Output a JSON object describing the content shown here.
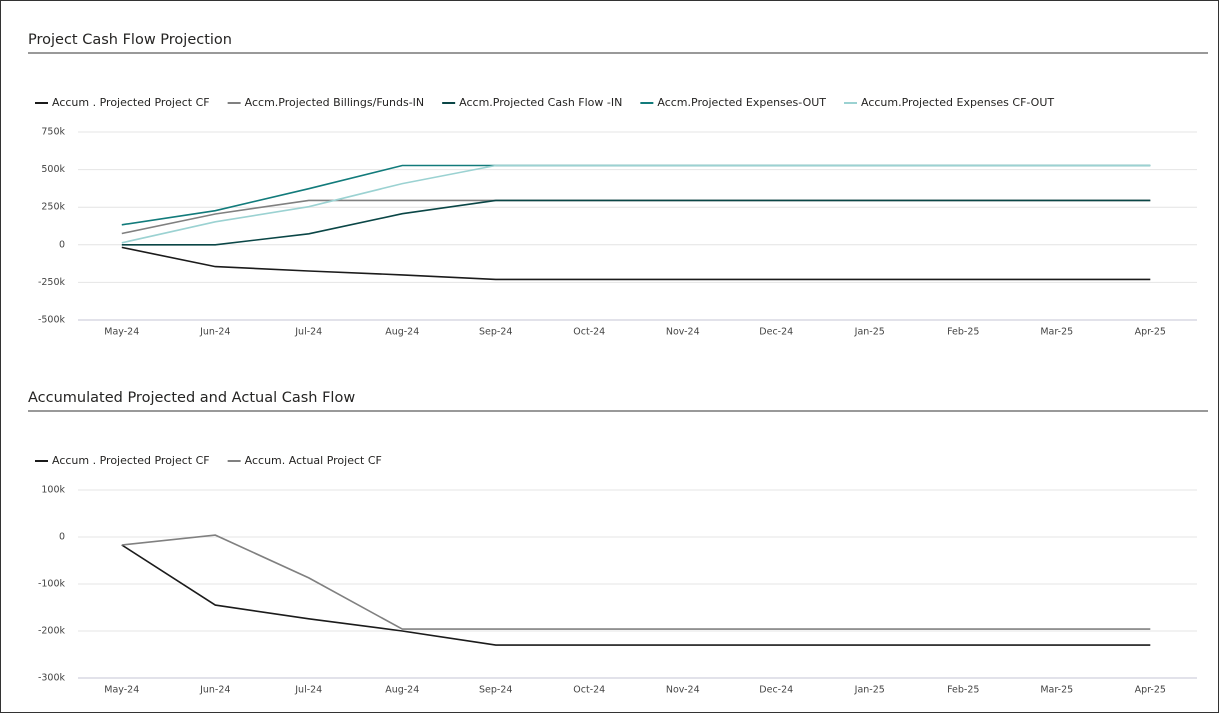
{
  "chart_data": [
    {
      "type": "line",
      "title": "Project Cash Flow Projection",
      "categories": [
        "May-24",
        "Jun-24",
        "Jul-24",
        "Aug-24",
        "Sep-24",
        "Oct-24",
        "Nov-24",
        "Dec-24",
        "Jan-25",
        "Feb-25",
        "Mar-25",
        "Apr-25"
      ],
      "series": [
        {
          "name": "Accum . Projected Project CF",
          "color": "#1b1b1b",
          "values": [
            -17000,
            -145000,
            -174000,
            -200000,
            -230000,
            -230000,
            -230000,
            -230000,
            -230000,
            -230000,
            -230000,
            -230000
          ]
        },
        {
          "name": "Accm.Projected Billings/Funds-IN",
          "color": "#808080",
          "values": [
            75000,
            205000,
            295000,
            295000,
            295000,
            295000,
            295000,
            295000,
            295000,
            295000,
            295000,
            295000
          ]
        },
        {
          "name": "Accm.Projected Cash Flow -IN",
          "color": "#0a4646",
          "values": [
            0,
            0,
            73000,
            207000,
            295000,
            295000,
            295000,
            295000,
            295000,
            295000,
            295000,
            295000
          ]
        },
        {
          "name": "Accm.Projected Expenses-OUT",
          "color": "#127b7b",
          "values": [
            133000,
            227000,
            373000,
            527000,
            527000,
            527000,
            527000,
            527000,
            527000,
            527000,
            527000,
            527000
          ]
        },
        {
          "name": "Accum.Projected Expenses CF-OUT",
          "color": "#9bd2d2",
          "values": [
            13000,
            153000,
            253000,
            407000,
            527000,
            527000,
            527000,
            527000,
            527000,
            527000,
            527000,
            527000
          ]
        }
      ],
      "ylim": [
        -500000,
        750000
      ],
      "yticks": [
        {
          "value": -500000,
          "label": "-500k"
        },
        {
          "value": -250000,
          "label": "-250k"
        },
        0,
        {
          "value": 250000,
          "label": "250k"
        },
        {
          "value": 500000,
          "label": "500k"
        },
        {
          "value": 750000,
          "label": "750k"
        }
      ],
      "grid": true
    },
    {
      "type": "line",
      "title": "Accumulated Projected and Actual Cash Flow",
      "categories": [
        "May-24",
        "Jun-24",
        "Jul-24",
        "Aug-24",
        "Sep-24",
        "Oct-24",
        "Nov-24",
        "Dec-24",
        "Jan-25",
        "Feb-25",
        "Mar-25",
        "Apr-25"
      ],
      "series": [
        {
          "name": "Accum . Projected Project CF",
          "color": "#1b1b1b",
          "values": [
            -17000,
            -145000,
            -174000,
            -200000,
            -230000,
            -230000,
            -230000,
            -230000,
            -230000,
            -230000,
            -230000,
            -230000
          ]
        },
        {
          "name": "Accum. Actual Project CF",
          "color": "#808080",
          "values": [
            -17000,
            4000,
            -87000,
            -196000,
            -196000,
            -196000,
            -196000,
            -196000,
            -196000,
            -196000,
            -196000,
            -196000
          ]
        }
      ],
      "ylim": [
        -300000,
        100000
      ],
      "yticks": [
        {
          "value": -300000,
          "label": "-300k"
        },
        {
          "value": -200000,
          "label": "-200k"
        },
        {
          "value": -100000,
          "label": "-100k"
        },
        0,
        {
          "value": 100000,
          "label": "100k"
        }
      ],
      "grid": true
    }
  ]
}
